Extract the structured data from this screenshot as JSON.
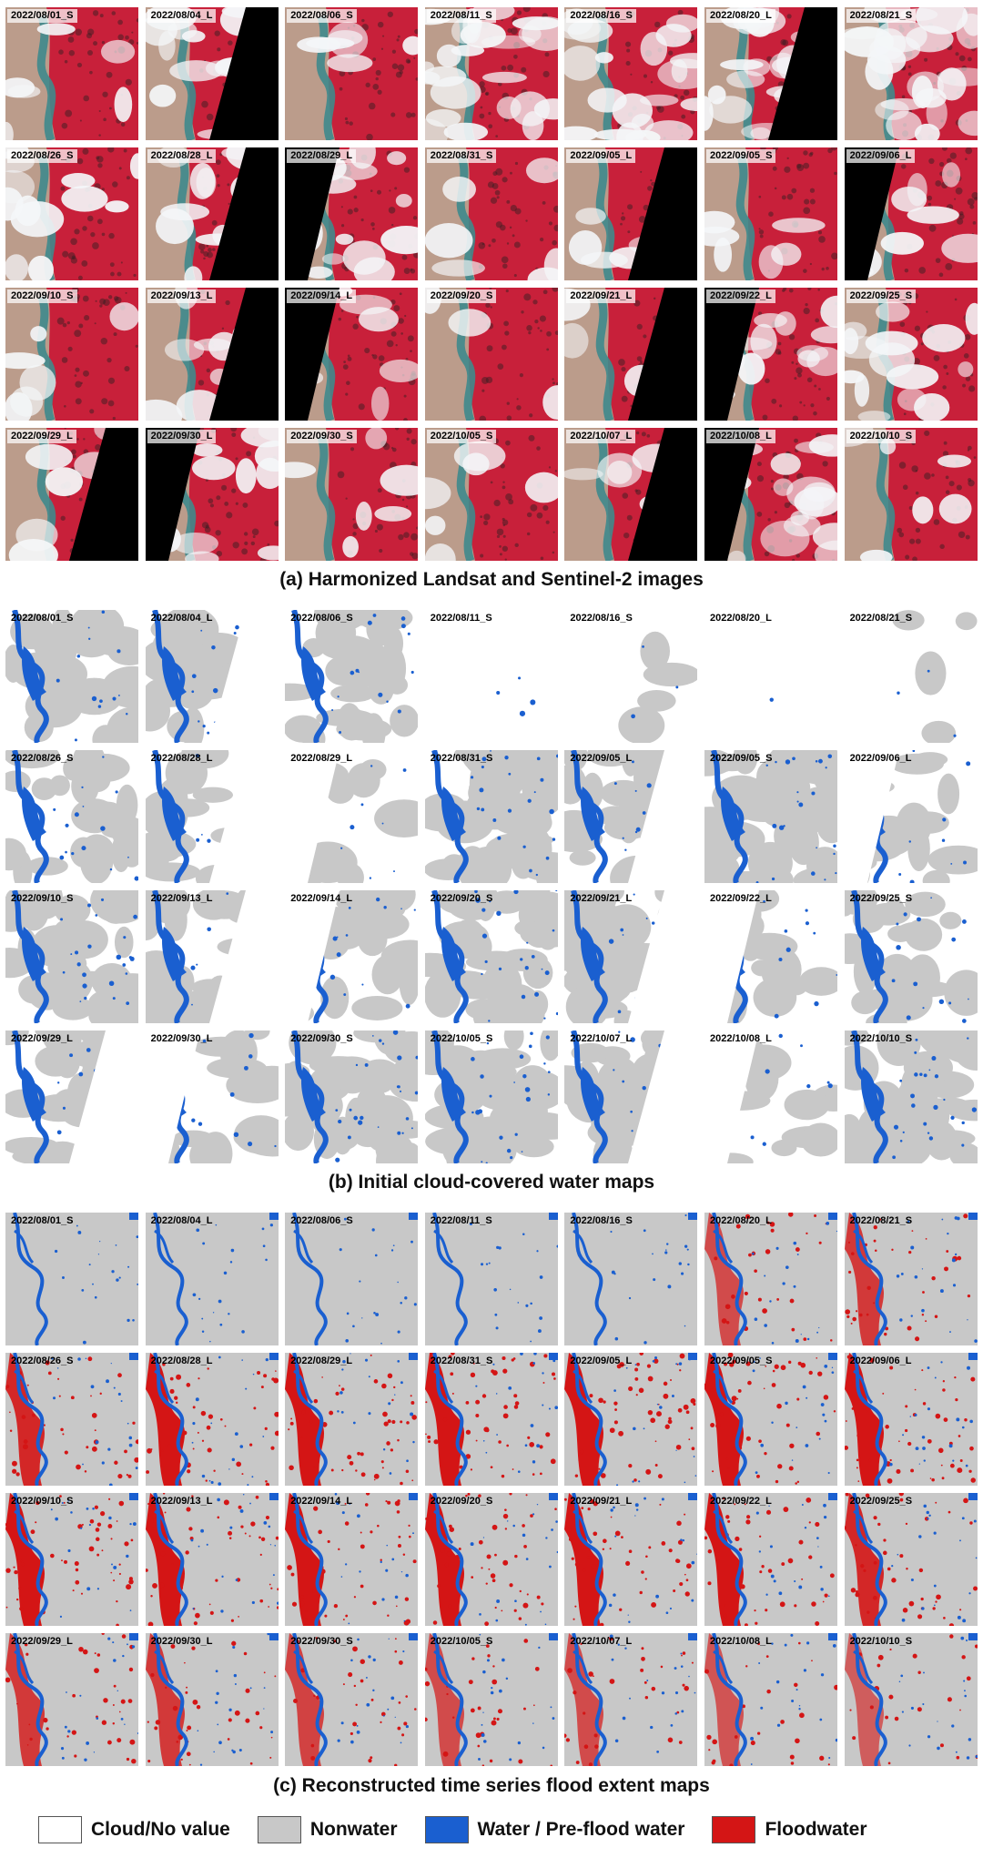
{
  "panels": {
    "a": {
      "caption": "(a) Harmonized Landsat and Sentinel-2 images",
      "labels": [
        "2022/08/01_S",
        "2022/08/04_L",
        "2022/08/06_S",
        "2022/08/11_S",
        "2022/08/16_S",
        "2022/08/20_L",
        "2022/08/21_S",
        "2022/08/26_S",
        "2022/08/28_L",
        "2022/08/29_L",
        "2022/08/31_S",
        "2022/09/05_L",
        "2022/09/05_S",
        "2022/09/06_L",
        "2022/09/10_S",
        "2022/09/13_L",
        "2022/09/14_L",
        "2022/09/20_S",
        "2022/09/21_L",
        "2022/09/22_L",
        "2022/09/25_S",
        "2022/09/29_L",
        "2022/09/30_L",
        "2022/09/30_S",
        "2022/10/05_S",
        "2022/10/07_L",
        "2022/10/08_L",
        "2022/10/10_S"
      ]
    },
    "b": {
      "caption": "(b) Initial cloud-covered water maps",
      "labels": [
        "2022/08/01_S",
        "2022/08/04_L",
        "2022/08/06_S",
        "2022/08/11_S",
        "2022/08/16_S",
        "2022/08/20_L",
        "2022/08/21_S",
        "2022/08/26_S",
        "2022/08/28_L",
        "2022/08/29_L",
        "2022/08/31_S",
        "2022/09/05_L",
        "2022/09/05_S",
        "2022/09/06_L",
        "2022/09/10_S",
        "2022/09/13_L",
        "2022/09/14_L",
        "2022/09/20_S",
        "2022/09/21_L",
        "2022/09/22_L",
        "2022/09/25_S",
        "2022/09/29_L",
        "2022/09/30_L",
        "2022/09/30_S",
        "2022/10/05_S",
        "2022/10/07_L",
        "2022/10/08_L",
        "2022/10/10_S"
      ]
    },
    "c": {
      "caption": "(c) Reconstructed time series flood extent maps",
      "labels": [
        "2022/08/01_S",
        "2022/08/04_L",
        "2022/08/06_S",
        "2022/08/11_S",
        "2022/08/16_S",
        "2022/08/20_L",
        "2022/08/21_S",
        "2022/08/26_S",
        "2022/08/28_L",
        "2022/08/29_L",
        "2022/08/31_S",
        "2022/09/05_L",
        "2022/09/05_S",
        "2022/09/06_L",
        "2022/09/10_S",
        "2022/09/13_L",
        "2022/09/14_L",
        "2022/09/20_S",
        "2022/09/21_L",
        "2022/09/22_L",
        "2022/09/25_S",
        "2022/09/29_L",
        "2022/09/30_L",
        "2022/09/30_S",
        "2022/10/05_S",
        "2022/10/07_L",
        "2022/10/08_L",
        "2022/10/10_S"
      ]
    }
  },
  "legend": [
    {
      "label": "Cloud/No value",
      "color": "#ffffff"
    },
    {
      "label": "Nonwater",
      "color": "#c8c8c8"
    },
    {
      "label": "Water / Pre-flood water",
      "color": "#1a5fd0"
    },
    {
      "label": "Floodwater",
      "color": "#d41515"
    }
  ],
  "colors": {
    "vegetation_red": "#c8203a",
    "cloud": "#f4f6f8",
    "nodata_stripe": "#000000",
    "lake_teal": "#3f8a8c",
    "dry_land": "#b9b39a",
    "nonwater": "#c8c8c8",
    "water": "#1a5fd0",
    "floodwater": "#d41515"
  }
}
